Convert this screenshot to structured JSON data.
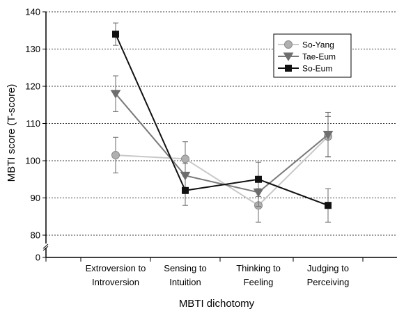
{
  "chart_data": {
    "type": "line",
    "xlabel": "MBTI dichotomy",
    "ylabel": "MBTI score (T-score)",
    "categories": [
      [
        "Extroversion to",
        "Introversion"
      ],
      [
        "Sensing to",
        "Intuition"
      ],
      [
        "Thinking to",
        "Feeling"
      ],
      [
        "Judging to",
        "Perceiving"
      ]
    ],
    "y_ticks": [
      0,
      80,
      90,
      100,
      110,
      120,
      130,
      140
    ],
    "y_axis_break": true,
    "grid": "dotted horizontal at 80-140",
    "legend_position": "top-right",
    "series": [
      {
        "name": "So-Yang",
        "marker": "circle",
        "color": "#c8c8c8",
        "marker_fill": "#b0b0b0",
        "values": [
          101.5,
          100.5,
          88,
          106.5
        ],
        "error": [
          4.8,
          4.6,
          4.5,
          5.4
        ]
      },
      {
        "name": "Tae-Eum",
        "marker": "triangle-down",
        "color": "#7a7a7a",
        "marker_fill": "#6e6e6e",
        "values": [
          118,
          96,
          91.5,
          107
        ],
        "error": [
          4.8,
          3.2,
          3.8,
          6
        ]
      },
      {
        "name": "So-Eum",
        "marker": "square",
        "color": "#111111",
        "marker_fill": "#111111",
        "values": [
          134,
          92,
          95,
          88
        ],
        "error": [
          3,
          4,
          4.6,
          4.5
        ]
      }
    ]
  }
}
